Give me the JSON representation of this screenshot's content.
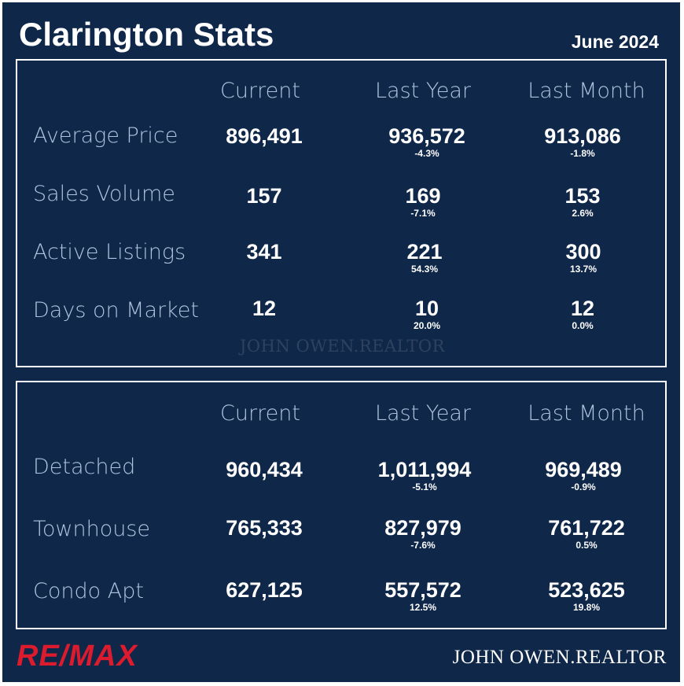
{
  "header": {
    "title": "Clarington Stats",
    "period": "June 2024"
  },
  "columns": [
    "Current",
    "Last Year",
    "Last Month"
  ],
  "summary": {
    "rows": [
      {
        "label": "Average Price",
        "current": "896,491",
        "last_year": "936,572",
        "last_year_change": "-4.3%",
        "last_month": "913,086",
        "last_month_change": "-1.8%"
      },
      {
        "label": "Sales Volume",
        "current": "157",
        "last_year": "169",
        "last_year_change": "-7.1%",
        "last_month": "153",
        "last_month_change": "2.6%"
      },
      {
        "label": "Active Listings",
        "current": "341",
        "last_year": "221",
        "last_year_change": "54.3%",
        "last_month": "300",
        "last_month_change": "13.7%"
      },
      {
        "label": "Days on Market",
        "current": "12",
        "last_year": "10",
        "last_year_change": "20.0%",
        "last_month": "12",
        "last_month_change": "0.0%"
      }
    ]
  },
  "property_types": {
    "rows": [
      {
        "label": "Detached",
        "current": "960,434",
        "last_year": "1,011,994",
        "last_year_change": "-5.1%",
        "last_month": "969,489",
        "last_month_change": "-0.9%"
      },
      {
        "label": "Townhouse",
        "current": "765,333",
        "last_year": "827,979",
        "last_year_change": "-7.6%",
        "last_month": "761,722",
        "last_month_change": "0.5%"
      },
      {
        "label": "Condo Apt",
        "current": "627,125",
        "last_year": "557,572",
        "last_year_change": "12.5%",
        "last_month": "523,625",
        "last_month_change": "19.8%"
      }
    ]
  },
  "branding": {
    "watermark": "JOHN OWEN.REALTOR",
    "logo_text": "RE/MAX",
    "agent_name": "JOHN OWEN.REALTOR"
  },
  "colors": {
    "background": "#0f2749",
    "label": "#aec3dd",
    "value": "#ffffff",
    "brand_red": "#dc1c2e"
  }
}
